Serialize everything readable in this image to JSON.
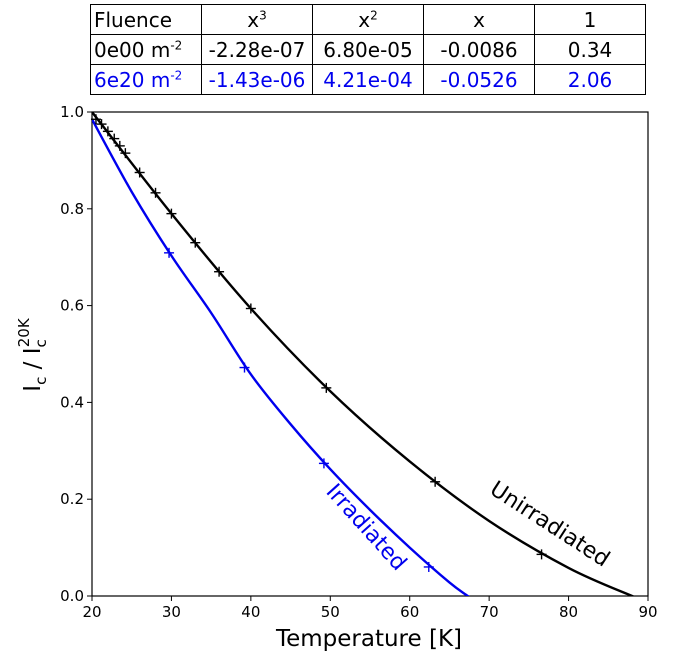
{
  "table": {
    "headers": [
      {
        "base": "Fluence",
        "sup": ""
      },
      {
        "base": "x",
        "sup": "3"
      },
      {
        "base": "x",
        "sup": "2"
      },
      {
        "base": "x",
        "sup": ""
      },
      {
        "base": "1",
        "sup": ""
      }
    ],
    "rows": [
      {
        "fluence": "0e00 m",
        "fluence_sup": "-2",
        "c3": "-2.28e-07",
        "c2": "6.80e-05",
        "c1": "-0.0086",
        "c0": "0.34",
        "color": "#000000"
      },
      {
        "fluence": "6e20 m",
        "fluence_sup": "-2",
        "c3": "-1.43e-06",
        "c2": "4.21e-04",
        "c1": "-0.0526",
        "c0": "2.06",
        "color": "#0000ee"
      }
    ]
  },
  "chart_data": {
    "type": "line",
    "xlabel": "Temperature [K]",
    "ylabel_main": "I",
    "ylabel_sub": "c",
    "ylabel_mid": " / I",
    "ylabel_sub2": "c",
    "ylabel_sup2": "20K",
    "xlim": [
      20,
      90
    ],
    "ylim": [
      0.0,
      1.0
    ],
    "xticks": [
      "20",
      "30",
      "40",
      "50",
      "60",
      "70",
      "80",
      "90"
    ],
    "yticks": [
      "0.0",
      "0.2",
      "0.4",
      "0.6",
      "0.8",
      "1.0"
    ],
    "series": [
      {
        "name": "Unirradiated",
        "color": "#000000",
        "fit": {
          "c3": -2.28e-07,
          "c2": 6.8e-05,
          "c1": -0.0086,
          "c0": 0.34
        },
        "fit_scale": 2.9412,
        "points": [
          [
            20.5,
            0.985
          ],
          [
            21.2,
            0.975
          ],
          [
            22.0,
            0.96
          ],
          [
            22.8,
            0.945
          ],
          [
            23.5,
            0.93
          ],
          [
            24.2,
            0.915
          ],
          [
            26.0,
            0.875
          ],
          [
            28.0,
            0.833
          ],
          [
            30.0,
            0.79
          ],
          [
            33.0,
            0.73
          ],
          [
            36.0,
            0.67
          ],
          [
            40.0,
            0.594
          ],
          [
            49.5,
            0.43
          ],
          [
            63.2,
            0.236
          ],
          [
            76.6,
            0.086
          ]
        ]
      },
      {
        "name": "Irradiated",
        "color": "#0000ee",
        "fit": {
          "c3": -1.43e-06,
          "c2": 0.000421,
          "c1": -0.0526,
          "c0": 2.06
        },
        "fit_scale": 0.5,
        "points": [
          [
            29.7,
            0.709
          ],
          [
            39.2,
            0.472
          ],
          [
            49.2,
            0.274
          ],
          [
            62.4,
            0.06
          ]
        ]
      }
    ],
    "annotations": [
      {
        "text": "Unirradiated",
        "color": "#000000"
      },
      {
        "text": "Irradiated",
        "color": "#0000ee"
      }
    ]
  }
}
